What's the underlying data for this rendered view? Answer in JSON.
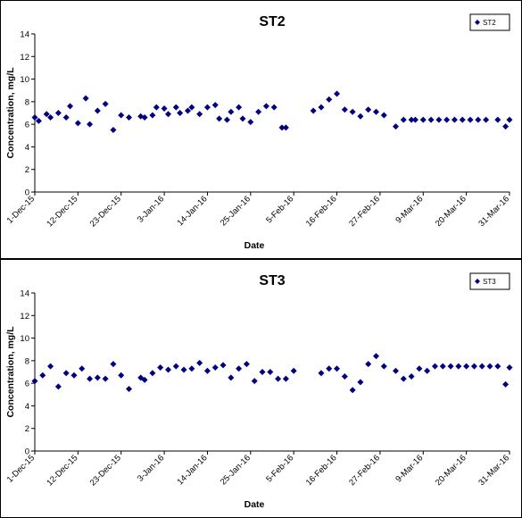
{
  "chart_data": [
    {
      "type": "scatter",
      "title": "ST2",
      "xlabel": "Date",
      "ylabel": "Concentration, mg/L",
      "ylim": [
        0,
        14
      ],
      "yticks": [
        0,
        2,
        4,
        6,
        8,
        10,
        12,
        14
      ],
      "xlim": [
        "2015-12-01",
        "2016-03-31"
      ],
      "xticks": [
        "2015-12-01",
        "2015-12-12",
        "2015-12-23",
        "2016-01-03",
        "2016-01-14",
        "2016-01-25",
        "2016-02-05",
        "2016-02-16",
        "2016-02-27",
        "2016-03-09",
        "2016-03-20",
        "2016-03-31"
      ],
      "xtick_labels": [
        "1-Dec-15",
        "12-Dec-15",
        "23-Dec-15",
        "3-Jan-16",
        "14-Jan-16",
        "25-Jan-16",
        "5-Feb-16",
        "16-Feb-16",
        "27-Feb-16",
        "9-Mar-16",
        "20-Mar-16",
        "31-Mar-16"
      ],
      "legend": "top-right",
      "grid": false,
      "marker_color": "#000080",
      "series": [
        {
          "name": "ST2",
          "x": [
            "2015-12-01",
            "2015-12-02",
            "2015-12-04",
            "2015-12-05",
            "2015-12-07",
            "2015-12-09",
            "2015-12-10",
            "2015-12-12",
            "2015-12-14",
            "2015-12-15",
            "2015-12-17",
            "2015-12-19",
            "2015-12-21",
            "2015-12-23",
            "2015-12-25",
            "2015-12-28",
            "2015-12-29",
            "2015-12-31",
            "2016-01-01",
            "2016-01-03",
            "2016-01-04",
            "2016-01-06",
            "2016-01-07",
            "2016-01-09",
            "2016-01-10",
            "2016-01-12",
            "2016-01-14",
            "2016-01-16",
            "2016-01-17",
            "2016-01-19",
            "2016-01-20",
            "2016-01-22",
            "2016-01-23",
            "2016-01-25",
            "2016-01-27",
            "2016-01-29",
            "2016-01-31",
            "2016-02-02",
            "2016-02-03",
            "2016-02-10",
            "2016-02-12",
            "2016-02-14",
            "2016-02-16",
            "2016-02-18",
            "2016-02-20",
            "2016-02-22",
            "2016-02-24",
            "2016-02-26",
            "2016-02-28",
            "2016-03-02",
            "2016-03-04",
            "2016-03-06",
            "2016-03-07",
            "2016-03-09",
            "2016-03-11",
            "2016-03-13",
            "2016-03-15",
            "2016-03-17",
            "2016-03-19",
            "2016-03-21",
            "2016-03-23",
            "2016-03-25",
            "2016-03-28",
            "2016-03-30",
            "2016-03-31"
          ],
          "y": [
            6.6,
            6.3,
            6.9,
            6.6,
            7.0,
            6.6,
            7.6,
            6.1,
            8.3,
            6.0,
            7.2,
            7.8,
            5.5,
            6.8,
            6.6,
            6.7,
            6.6,
            6.8,
            7.5,
            7.4,
            6.9,
            7.5,
            7.0,
            7.2,
            7.5,
            6.9,
            7.5,
            7.7,
            6.5,
            6.4,
            7.1,
            7.5,
            6.5,
            6.2,
            7.1,
            7.6,
            7.5,
            5.7,
            5.7,
            7.2,
            7.5,
            8.2,
            8.7,
            7.3,
            7.1,
            6.7,
            7.3,
            7.1,
            6.8,
            5.8,
            6.4,
            6.4,
            6.4,
            6.4,
            6.4,
            6.4,
            6.4,
            6.4,
            6.4,
            6.4,
            6.4,
            6.4,
            6.4,
            5.8,
            6.4
          ]
        }
      ]
    },
    {
      "type": "scatter",
      "title": "ST3",
      "xlabel": "Date",
      "ylabel": "Concentration, mg/L",
      "ylim": [
        0,
        14
      ],
      "yticks": [
        0,
        2,
        4,
        6,
        8,
        10,
        12,
        14
      ],
      "xlim": [
        "2015-12-01",
        "2016-03-31"
      ],
      "xticks": [
        "2015-12-01",
        "2015-12-12",
        "2015-12-23",
        "2016-01-03",
        "2016-01-14",
        "2016-01-25",
        "2016-02-05",
        "2016-02-16",
        "2016-02-27",
        "2016-03-09",
        "2016-03-20",
        "2016-03-31"
      ],
      "xtick_labels": [
        "1-Dec-15",
        "12-Dec-15",
        "23-Dec-15",
        "3-Jan-16",
        "14-Jan-16",
        "25-Jan-16",
        "5-Feb-16",
        "16-Feb-16",
        "27-Feb-16",
        "9-Mar-16",
        "20-Mar-16",
        "31-Mar-16"
      ],
      "legend": "top-right",
      "grid": false,
      "marker_color": "#000080",
      "series": [
        {
          "name": "ST3",
          "x": [
            "2015-12-01",
            "2015-12-03",
            "2015-12-05",
            "2015-12-07",
            "2015-12-09",
            "2015-12-11",
            "2015-12-13",
            "2015-12-15",
            "2015-12-17",
            "2015-12-19",
            "2015-12-21",
            "2015-12-23",
            "2015-12-25",
            "2015-12-28",
            "2015-12-29",
            "2015-12-31",
            "2016-01-02",
            "2016-01-04",
            "2016-01-06",
            "2016-01-08",
            "2016-01-10",
            "2016-01-12",
            "2016-01-14",
            "2016-01-16",
            "2016-01-18",
            "2016-01-20",
            "2016-01-22",
            "2016-01-24",
            "2016-01-26",
            "2016-01-28",
            "2016-01-30",
            "2016-02-01",
            "2016-02-03",
            "2016-02-05",
            "2016-02-12",
            "2016-02-14",
            "2016-02-16",
            "2016-02-18",
            "2016-02-20",
            "2016-02-22",
            "2016-02-24",
            "2016-02-26",
            "2016-02-28",
            "2016-03-02",
            "2016-03-04",
            "2016-03-06",
            "2016-03-08",
            "2016-03-10",
            "2016-03-12",
            "2016-03-14",
            "2016-03-16",
            "2016-03-18",
            "2016-03-20",
            "2016-03-22",
            "2016-03-24",
            "2016-03-26",
            "2016-03-28",
            "2016-03-30",
            "2016-03-31"
          ],
          "y": [
            6.2,
            6.7,
            7.5,
            5.7,
            6.9,
            6.7,
            7.3,
            6.4,
            6.5,
            6.4,
            7.7,
            6.7,
            5.5,
            6.5,
            6.3,
            6.9,
            7.4,
            7.2,
            7.5,
            7.2,
            7.3,
            7.8,
            7.1,
            7.4,
            7.6,
            6.5,
            7.3,
            7.7,
            6.2,
            7.0,
            7.0,
            6.4,
            6.4,
            7.1,
            6.9,
            7.3,
            7.3,
            6.6,
            5.4,
            6.1,
            7.7,
            8.4,
            7.5,
            7.1,
            6.4,
            6.6,
            7.3,
            7.1,
            7.5,
            7.5,
            7.5,
            7.5,
            7.5,
            7.5,
            7.5,
            7.5,
            7.5,
            5.9,
            7.4
          ]
        }
      ]
    }
  ]
}
